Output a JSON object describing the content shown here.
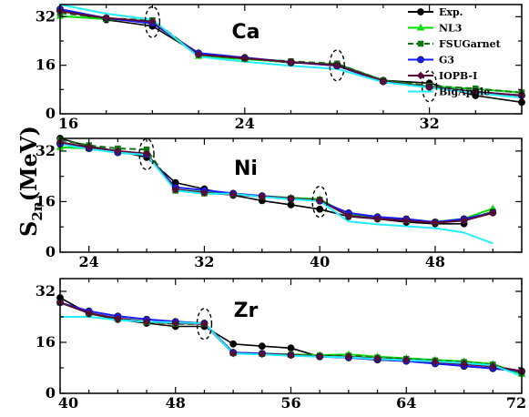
{
  "figure": {
    "y_label_main": "S",
    "y_label_sub": "2n",
    "y_label_unit": "(MeV)"
  },
  "colors": {
    "Exp.": "#000000",
    "NL3": "#00dd00",
    "FSUGarnet": "#117711",
    "G3": "#1a1aff",
    "IOPB-I": "#5a0a3a",
    "BigApple": "#22eeff"
  },
  "legend": [
    "Exp.",
    "NL3",
    "FSUGarnet",
    "G3",
    "IOPB-I",
    "BigApple"
  ],
  "chart_data": [
    {
      "type": "line",
      "title": "Ca",
      "xlim": [
        16,
        36
      ],
      "ylim": [
        0,
        36
      ],
      "xticks": [
        16,
        24,
        32
      ],
      "yticks": [
        0,
        16,
        32
      ],
      "magic_numbers": [
        20,
        28,
        32
      ],
      "legend": "top-right",
      "series": [
        {
          "name": "Exp.",
          "x": [
            16,
            18,
            20,
            22,
            24,
            26,
            28,
            30,
            32,
            34,
            36
          ],
          "y": [
            34,
            31,
            28.9,
            19.6,
            18.2,
            16.8,
            16.4,
            11,
            10.1,
            6,
            3.8
          ]
        },
        {
          "name": "NL3",
          "x": [
            16,
            18,
            20,
            22,
            24,
            26,
            28,
            30,
            32,
            34,
            36
          ],
          "y": [
            32.2,
            31.2,
            30.5,
            19,
            18,
            17,
            16.2,
            10.8,
            9,
            8.2,
            7
          ]
        },
        {
          "name": "FSUGarnet",
          "x": [
            16,
            18,
            20,
            22,
            24,
            26,
            28,
            30,
            32,
            34,
            36
          ],
          "y": [
            33.2,
            31.5,
            30.8,
            19.5,
            18.2,
            17.3,
            16.5,
            11,
            9.2,
            8.3,
            7
          ]
        },
        {
          "name": "G3",
          "x": [
            16,
            18,
            20,
            22,
            24,
            26,
            28,
            30,
            32,
            34,
            36
          ],
          "y": [
            34.5,
            31.5,
            29.8,
            20,
            18.5,
            17,
            15.8,
            10.6,
            8.8,
            7.3,
            6
          ]
        },
        {
          "name": "IOPB-I",
          "x": [
            16,
            18,
            20,
            22,
            24,
            26,
            28,
            30,
            32,
            34,
            36
          ],
          "y": [
            33.8,
            31.6,
            30.4,
            19.5,
            18.3,
            17.1,
            16,
            10.7,
            8.7,
            7.2,
            6.1
          ]
        },
        {
          "name": "BigApple",
          "x": [
            16,
            18,
            20,
            22,
            24,
            26,
            28,
            30,
            32,
            34,
            36
          ],
          "y": [
            36,
            33,
            31,
            18.8,
            17.2,
            15.8,
            14.8,
            10.4,
            8.6,
            6.8,
            5.3
          ]
        }
      ]
    },
    {
      "type": "line",
      "title": "Ni",
      "xlim": [
        22,
        54
      ],
      "ylim": [
        0,
        36
      ],
      "xticks": [
        24,
        32,
        40,
        48
      ],
      "yticks": [
        0,
        16,
        32
      ],
      "magic_numbers": [
        28,
        40
      ],
      "legend": "",
      "series": [
        {
          "name": "Exp.",
          "x": [
            22,
            24,
            26,
            28,
            30,
            32,
            34,
            36,
            38,
            40,
            42,
            44,
            46,
            48,
            50
          ],
          "y": [
            36,
            33.5,
            32,
            30,
            22,
            20,
            18,
            16.3,
            15,
            13.6,
            11.3,
            10.5,
            9.5,
            9,
            9
          ]
        },
        {
          "name": "NL3",
          "x": [
            22,
            24,
            26,
            28,
            30,
            32,
            34,
            36,
            38,
            40,
            42,
            44,
            46,
            48,
            50,
            52
          ],
          "y": [
            33.2,
            32.8,
            31.6,
            30.8,
            19.8,
            19,
            18.3,
            17.8,
            17.2,
            16.8,
            11.8,
            10.8,
            10.2,
            9.6,
            10.6,
            13.8
          ]
        },
        {
          "name": "FSUGarnet",
          "x": [
            22,
            24,
            26,
            28,
            30,
            32,
            34,
            36,
            38,
            40,
            42,
            44,
            46,
            48,
            50,
            52
          ],
          "y": [
            35.5,
            33.8,
            32.8,
            32.5,
            19.5,
            18.6,
            18.3,
            17.6,
            17,
            16.6,
            11.7,
            10.7,
            10.1,
            9.5,
            10.3,
            12.8
          ]
        },
        {
          "name": "G3",
          "x": [
            22,
            24,
            26,
            28,
            30,
            32,
            34,
            36,
            38,
            40,
            42,
            44,
            46,
            48,
            50,
            52
          ],
          "y": [
            34.2,
            32.8,
            31.5,
            30.8,
            20.5,
            19.6,
            18.6,
            17.8,
            17,
            16.2,
            12.4,
            11.2,
            10.5,
            9.5,
            10.5,
            12.5
          ]
        },
        {
          "name": "IOPB-I",
          "x": [
            22,
            24,
            26,
            28,
            30,
            32,
            34,
            36,
            38,
            40,
            42,
            44,
            46,
            48,
            50,
            52
          ],
          "y": [
            34.8,
            33.2,
            32,
            31.2,
            19.8,
            18.8,
            18.2,
            17.6,
            17,
            16.4,
            11.5,
            10.6,
            10,
            9.3,
            10,
            12.4
          ]
        },
        {
          "name": "BigApple",
          "x": [
            22,
            24,
            26,
            28,
            30,
            32,
            34,
            36,
            38,
            40,
            42,
            44,
            46,
            48,
            50,
            52
          ],
          "y": [
            34.2,
            32.6,
            31.5,
            30.8,
            19.5,
            18.5,
            18.5,
            17.5,
            16.8,
            16.2,
            9.7,
            8.8,
            8.2,
            7.6,
            6.2,
            2.8
          ]
        }
      ]
    },
    {
      "type": "line",
      "title": "Zr",
      "xlim": [
        40,
        72
      ],
      "ylim": [
        0,
        36
      ],
      "xticks": [
        40,
        48,
        56,
        64,
        72
      ],
      "yticks": [
        0,
        16,
        32
      ],
      "magic_numbers": [
        50
      ],
      "legend": "",
      "series": [
        {
          "name": "Exp.",
          "x": [
            40,
            42,
            44,
            46,
            48,
            50,
            52,
            54,
            56,
            58,
            60,
            62,
            64,
            66,
            68,
            70,
            72
          ],
          "y": [
            30,
            25,
            23.2,
            22,
            21,
            21,
            15.5,
            14.8,
            14.2,
            11.5,
            11.2,
            10.5,
            10.1,
            9.5,
            8.5,
            7.8,
            6.8
          ]
        },
        {
          "name": "NL3",
          "x": [
            40,
            42,
            44,
            46,
            48,
            50,
            52,
            54,
            56,
            58,
            60,
            62,
            64,
            66,
            68,
            70,
            72
          ],
          "y": [
            28.5,
            25.2,
            23.5,
            22.5,
            22,
            22,
            12.8,
            12.5,
            12.2,
            12,
            12.2,
            11.5,
            11,
            10.5,
            10,
            9.2,
            6
          ]
        },
        {
          "name": "FSUGarnet",
          "x": [
            40,
            42,
            44,
            46,
            48,
            50,
            52,
            54,
            56,
            58,
            60,
            62,
            64,
            66,
            68,
            70,
            72
          ],
          "y": [
            28.5,
            25.2,
            23.4,
            22.4,
            21.8,
            21.8,
            12.6,
            12.4,
            12.1,
            11.8,
            11.8,
            11.2,
            10.8,
            10.3,
            9.8,
            9,
            6.5
          ]
        },
        {
          "name": "G3",
          "x": [
            40,
            42,
            44,
            46,
            48,
            50,
            52,
            54,
            56,
            58,
            60,
            62,
            64,
            66,
            68,
            70,
            72
          ],
          "y": [
            28.5,
            25.8,
            24.2,
            23.2,
            22.5,
            22,
            12.8,
            12.5,
            12,
            11.5,
            11.2,
            10.6,
            10.1,
            9.3,
            8.6,
            7.8,
            7
          ]
        },
        {
          "name": "IOPB-I",
          "x": [
            40,
            42,
            44,
            46,
            48,
            50,
            52,
            54,
            56,
            58,
            60,
            62,
            64,
            66,
            68,
            70,
            72
          ],
          "y": [
            28.5,
            25.2,
            23.5,
            22.5,
            22,
            21.8,
            12.5,
            12.3,
            12,
            11.6,
            11.5,
            10.9,
            10.5,
            9.8,
            9.2,
            8.4,
            7
          ]
        },
        {
          "name": "BigApple",
          "x": [
            40,
            42,
            44,
            46,
            48,
            50,
            52,
            54,
            56,
            58,
            60,
            62,
            64,
            66,
            68,
            70,
            72
          ],
          "y": [
            24,
            24,
            23,
            22.5,
            22.2,
            22,
            12.5,
            12.2,
            11.8,
            11.5,
            11.3,
            10.8,
            10.4,
            10,
            9.5,
            8.8,
            5.5
          ]
        }
      ]
    }
  ]
}
